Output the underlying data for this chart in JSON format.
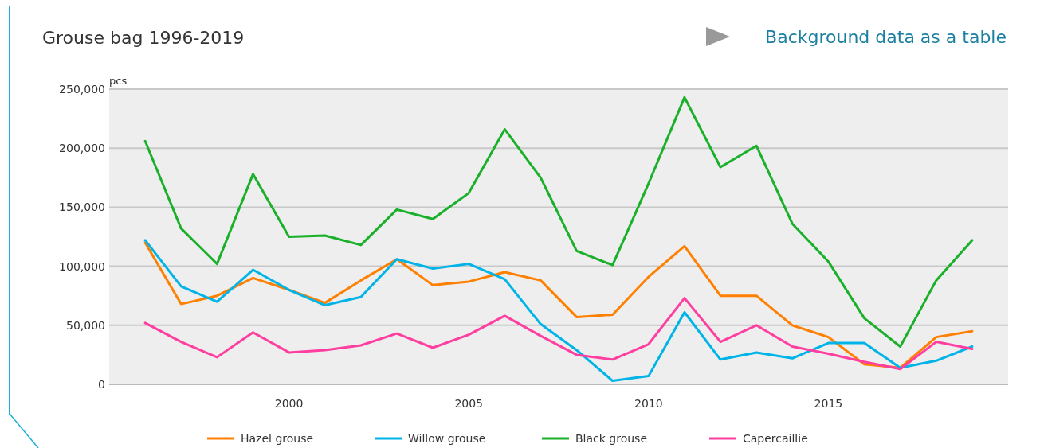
{
  "chart_data": {
    "type": "line",
    "title": "Grouse bag 1996-2019",
    "ylabel": "pcs",
    "annotations": [
      "Background data as a table"
    ],
    "x": [
      1996,
      1997,
      1998,
      1999,
      2000,
      2001,
      2002,
      2003,
      2004,
      2005,
      2006,
      2007,
      2008,
      2009,
      2010,
      2011,
      2012,
      2013,
      2014,
      2015,
      2016,
      2017,
      2018,
      2019
    ],
    "series": [
      {
        "name": "Hazel grouse",
        "color": "#ff8000",
        "values": [
          120000,
          68000,
          75000,
          90000,
          80000,
          69000,
          88000,
          106000,
          84000,
          87000,
          95000,
          88000,
          57000,
          59000,
          91000,
          117000,
          75000,
          75000,
          50000,
          40000,
          17000,
          14000,
          40000,
          45000
        ]
      },
      {
        "name": "Willow grouse",
        "color": "#00b4e8",
        "values": [
          122000,
          83000,
          70000,
          97000,
          80000,
          67000,
          74000,
          106000,
          98000,
          102000,
          89000,
          51000,
          29000,
          3000,
          7000,
          61000,
          21000,
          27000,
          22000,
          35000,
          35000,
          14000,
          20000,
          32000
        ]
      },
      {
        "name": "Black grouse",
        "color": "#1ab02a",
        "values": [
          206000,
          132000,
          102000,
          178000,
          125000,
          126000,
          118000,
          148000,
          140000,
          162000,
          216000,
          175000,
          113000,
          101000,
          170000,
          243000,
          184000,
          202000,
          136000,
          104000,
          56000,
          32000,
          88000,
          122000
        ]
      },
      {
        "name": "Capercaillie",
        "color": "#ff3fa0",
        "values": [
          52000,
          36000,
          23000,
          44000,
          27000,
          29000,
          33000,
          43000,
          31000,
          42000,
          58000,
          41000,
          25000,
          21000,
          34000,
          73000,
          36000,
          50000,
          32000,
          26000,
          19000,
          13000,
          36000,
          30000
        ]
      }
    ],
    "xlim": [
      1995,
      2020
    ],
    "xticks": [
      2000,
      2005,
      2010,
      2015
    ],
    "ylim": [
      0,
      250000
    ],
    "yticks": [
      {
        "value": 0,
        "label": "0"
      },
      {
        "value": 50000,
        "label": "50,000"
      },
      {
        "value": 100000,
        "label": "100,000"
      },
      {
        "value": 150000,
        "label": "150,000"
      },
      {
        "value": 200000,
        "label": "200,000"
      },
      {
        "value": 250000,
        "label": "250,000"
      }
    ],
    "grid": "y",
    "legend": "bottom",
    "marker": "none",
    "line_style": "solid"
  }
}
